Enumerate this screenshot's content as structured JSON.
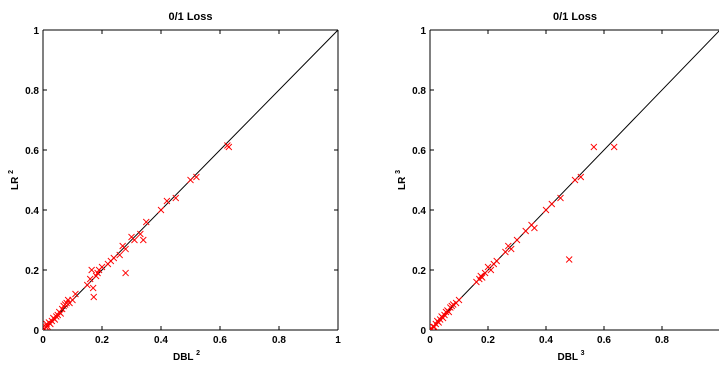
{
  "chart_data": [
    {
      "type": "scatter",
      "title": "0/1 Loss",
      "xlabel": "DBL",
      "xlabel_sup": "2",
      "ylabel": "LR",
      "ylabel_sup": "2",
      "xlim": [
        0,
        1
      ],
      "ylim": [
        0,
        1
      ],
      "xticks": [
        "0",
        "0.2",
        "0.4",
        "0.6",
        "0.8",
        "1"
      ],
      "yticks": [
        "0",
        "0.2",
        "0.4",
        "0.6",
        "0.8",
        "1"
      ],
      "grid": false,
      "reference_line": "y = x",
      "marker": "x",
      "marker_color": "#ff0000",
      "line_color": "#000000",
      "points": [
        [
          0.005,
          0.005
        ],
        [
          0.01,
          0.01
        ],
        [
          0.012,
          0.02
        ],
        [
          0.015,
          0.012
        ],
        [
          0.02,
          0.025
        ],
        [
          0.025,
          0.02
        ],
        [
          0.03,
          0.03
        ],
        [
          0.035,
          0.04
        ],
        [
          0.04,
          0.035
        ],
        [
          0.045,
          0.045
        ],
        [
          0.05,
          0.05
        ],
        [
          0.055,
          0.06
        ],
        [
          0.06,
          0.055
        ],
        [
          0.065,
          0.07
        ],
        [
          0.07,
          0.08
        ],
        [
          0.075,
          0.085
        ],
        [
          0.08,
          0.09
        ],
        [
          0.085,
          0.1
        ],
        [
          0.09,
          0.09
        ],
        [
          0.1,
          0.1
        ],
        [
          0.11,
          0.12
        ],
        [
          0.15,
          0.15
        ],
        [
          0.16,
          0.17
        ],
        [
          0.165,
          0.2
        ],
        [
          0.17,
          0.14
        ],
        [
          0.172,
          0.11
        ],
        [
          0.18,
          0.18
        ],
        [
          0.185,
          0.19
        ],
        [
          0.19,
          0.2
        ],
        [
          0.2,
          0.21
        ],
        [
          0.22,
          0.22
        ],
        [
          0.23,
          0.23
        ],
        [
          0.24,
          0.24
        ],
        [
          0.26,
          0.25
        ],
        [
          0.27,
          0.28
        ],
        [
          0.28,
          0.27
        ],
        [
          0.28,
          0.19
        ],
        [
          0.3,
          0.31
        ],
        [
          0.31,
          0.3
        ],
        [
          0.33,
          0.32
        ],
        [
          0.34,
          0.3
        ],
        [
          0.35,
          0.36
        ],
        [
          0.4,
          0.4
        ],
        [
          0.42,
          0.43
        ],
        [
          0.45,
          0.44
        ],
        [
          0.5,
          0.5
        ],
        [
          0.52,
          0.51
        ],
        [
          0.625,
          0.615
        ],
        [
          0.63,
          0.61
        ]
      ]
    },
    {
      "type": "scatter",
      "title": "0/1 Loss",
      "xlabel": "DBL",
      "xlabel_sup": "3",
      "ylabel": "LR",
      "ylabel_sup": "3",
      "xlim": [
        0,
        1
      ],
      "ylim": [
        0,
        1
      ],
      "xticks": [
        "0",
        "0.2",
        "0.4",
        "0.6",
        "0.8"
      ],
      "yticks": [
        "0",
        "0.2",
        "0.4",
        "0.6",
        "0.8",
        "1"
      ],
      "grid": false,
      "reference_line": "y = x",
      "marker": "x",
      "marker_color": "#ff0000",
      "line_color": "#000000",
      "points": [
        [
          0.005,
          0.005
        ],
        [
          0.01,
          0.012
        ],
        [
          0.015,
          0.01
        ],
        [
          0.02,
          0.02
        ],
        [
          0.025,
          0.03
        ],
        [
          0.03,
          0.025
        ],
        [
          0.035,
          0.035
        ],
        [
          0.04,
          0.045
        ],
        [
          0.045,
          0.04
        ],
        [
          0.05,
          0.05
        ],
        [
          0.055,
          0.06
        ],
        [
          0.06,
          0.065
        ],
        [
          0.065,
          0.06
        ],
        [
          0.07,
          0.075
        ],
        [
          0.075,
          0.08
        ],
        [
          0.08,
          0.085
        ],
        [
          0.09,
          0.09
        ],
        [
          0.1,
          0.1
        ],
        [
          0.16,
          0.16
        ],
        [
          0.17,
          0.17
        ],
        [
          0.175,
          0.18
        ],
        [
          0.18,
          0.175
        ],
        [
          0.19,
          0.19
        ],
        [
          0.2,
          0.21
        ],
        [
          0.21,
          0.2
        ],
        [
          0.22,
          0.22
        ],
        [
          0.23,
          0.23
        ],
        [
          0.26,
          0.26
        ],
        [
          0.27,
          0.28
        ],
        [
          0.28,
          0.27
        ],
        [
          0.3,
          0.3
        ],
        [
          0.33,
          0.33
        ],
        [
          0.35,
          0.35
        ],
        [
          0.36,
          0.34
        ],
        [
          0.4,
          0.4
        ],
        [
          0.42,
          0.42
        ],
        [
          0.45,
          0.44
        ],
        [
          0.48,
          0.235
        ],
        [
          0.5,
          0.5
        ],
        [
          0.52,
          0.51
        ],
        [
          0.565,
          0.61
        ],
        [
          0.635,
          0.61
        ]
      ]
    }
  ]
}
